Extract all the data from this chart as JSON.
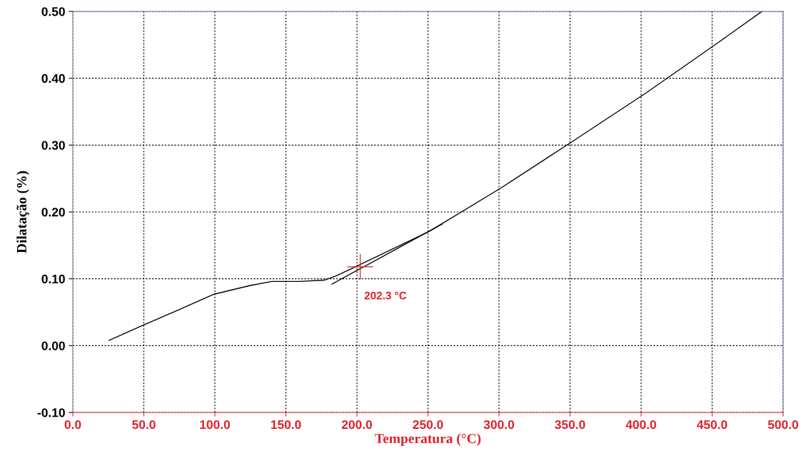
{
  "chart_data": {
    "type": "line",
    "xlabel": "Temperatura (°C)",
    "ylabel": "Dilatação (%)",
    "xlim": [
      0.0,
      500.0
    ],
    "xticks": [
      {
        "value": 0,
        "label": "0.0"
      },
      {
        "value": 50,
        "label": "50.0"
      },
      {
        "value": 100,
        "label": "100.0"
      },
      {
        "value": 150,
        "label": "150.0"
      },
      {
        "value": 200,
        "label": "200.0"
      },
      {
        "value": 250,
        "label": "250.0"
      },
      {
        "value": 300,
        "label": "300.0"
      },
      {
        "value": 350,
        "label": "350.0"
      },
      {
        "value": 400,
        "label": "400.0"
      },
      {
        "value": 450,
        "label": "450.0"
      },
      {
        "value": 500,
        "label": "500.0"
      }
    ],
    "ylim": [
      -0.1,
      0.5
    ],
    "yticks": [
      {
        "value": -0.1,
        "label": "-0.10"
      },
      {
        "value": 0,
        "label": "0.00"
      },
      {
        "value": 0.1,
        "label": "0.10"
      },
      {
        "value": 0.2,
        "label": "0.20"
      },
      {
        "value": 0.3,
        "label": "0.30"
      },
      {
        "value": 0.4,
        "label": "0.40"
      },
      {
        "value": 0.5,
        "label": "0.50"
      }
    ],
    "grid": true,
    "line_style": "solid",
    "marker": "none",
    "series": [
      {
        "color": "#000000",
        "x": [
          25.6,
          49,
          74,
          99.5,
          125,
          140,
          160,
          177,
          185,
          200,
          251,
          301.5,
          352.8,
          403.5,
          454,
          485
        ],
        "values": [
          0.008,
          0.03,
          0.053,
          0.077,
          0.09,
          0.096,
          0.096,
          0.098,
          0.104,
          0.119,
          0.171,
          0.236,
          0.307,
          0.378,
          0.453,
          0.5
        ]
      },
      {
        "color": "#000000",
        "x": [
          182.4,
          260
        ],
        "values": [
          0.092,
          0.182
        ]
      }
    ],
    "annotations": [
      {
        "text": "202.3 °C",
        "x": 202.3,
        "y": 0.118
      }
    ]
  }
}
